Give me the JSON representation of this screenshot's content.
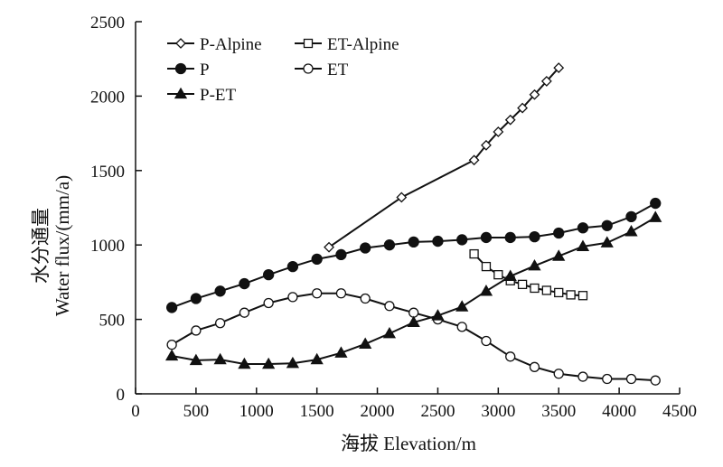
{
  "chart_data": {
    "type": "line",
    "title": "",
    "xlabel": "海拔 Elevation/m",
    "ylabel": [
      "水分通量",
      "Water flux/(mm/a)"
    ],
    "xlim": [
      0,
      4500
    ],
    "ylim": [
      0,
      2500
    ],
    "x_ticks": [
      0,
      500,
      1000,
      1500,
      2000,
      2500,
      3000,
      3500,
      4000,
      4500
    ],
    "y_ticks": [
      0,
      500,
      1000,
      1500,
      2000,
      2500
    ],
    "grid": false,
    "legend_position": "top-left",
    "series": [
      {
        "name": "P-Alpine",
        "marker": "diamond-open",
        "points": [
          [
            1600,
            985
          ],
          [
            2200,
            1320
          ],
          [
            2800,
            1570
          ],
          [
            2900,
            1670
          ],
          [
            3000,
            1760
          ],
          [
            3100,
            1840
          ],
          [
            3200,
            1920
          ],
          [
            3300,
            2010
          ],
          [
            3400,
            2100
          ],
          [
            3500,
            2190
          ]
        ]
      },
      {
        "name": "ET-Alpine",
        "marker": "square-open",
        "points": [
          [
            2800,
            940
          ],
          [
            2900,
            855
          ],
          [
            3000,
            800
          ],
          [
            3100,
            760
          ],
          [
            3200,
            735
          ],
          [
            3300,
            710
          ],
          [
            3400,
            695
          ],
          [
            3500,
            680
          ],
          [
            3600,
            665
          ],
          [
            3700,
            660
          ]
        ]
      },
      {
        "name": "P",
        "marker": "circle-filled",
        "points": [
          [
            300,
            580
          ],
          [
            500,
            640
          ],
          [
            700,
            690
          ],
          [
            900,
            740
          ],
          [
            1100,
            800
          ],
          [
            1300,
            855
          ],
          [
            1500,
            905
          ],
          [
            1700,
            935
          ],
          [
            1900,
            980
          ],
          [
            2100,
            1000
          ],
          [
            2300,
            1020
          ],
          [
            2500,
            1025
          ],
          [
            2700,
            1035
          ],
          [
            2900,
            1050
          ],
          [
            3100,
            1050
          ],
          [
            3300,
            1055
          ],
          [
            3500,
            1080
          ],
          [
            3700,
            1115
          ],
          [
            3900,
            1130
          ],
          [
            4100,
            1190
          ],
          [
            4300,
            1280
          ]
        ]
      },
      {
        "name": "ET",
        "marker": "circle-open",
        "points": [
          [
            300,
            330
          ],
          [
            500,
            425
          ],
          [
            700,
            475
          ],
          [
            900,
            545
          ],
          [
            1100,
            610
          ],
          [
            1300,
            650
          ],
          [
            1500,
            675
          ],
          [
            1700,
            675
          ],
          [
            1900,
            640
          ],
          [
            2100,
            590
          ],
          [
            2300,
            545
          ],
          [
            2500,
            500
          ],
          [
            2700,
            450
          ],
          [
            2900,
            355
          ],
          [
            3100,
            250
          ],
          [
            3300,
            180
          ],
          [
            3500,
            135
          ],
          [
            3700,
            115
          ],
          [
            3900,
            100
          ],
          [
            4100,
            100
          ],
          [
            4300,
            90
          ]
        ]
      },
      {
        "name": "P-ET",
        "marker": "triangle-filled",
        "points": [
          [
            300,
            255
          ],
          [
            500,
            225
          ],
          [
            700,
            230
          ],
          [
            900,
            200
          ],
          [
            1100,
            200
          ],
          [
            1300,
            205
          ],
          [
            1500,
            230
          ],
          [
            1700,
            275
          ],
          [
            1900,
            335
          ],
          [
            2100,
            405
          ],
          [
            2300,
            480
          ],
          [
            2500,
            525
          ],
          [
            2700,
            585
          ],
          [
            2900,
            690
          ],
          [
            3100,
            790
          ],
          [
            3300,
            860
          ],
          [
            3500,
            925
          ],
          [
            3700,
            990
          ],
          [
            3900,
            1015
          ],
          [
            4100,
            1090
          ],
          [
            4300,
            1185
          ]
        ]
      }
    ]
  }
}
